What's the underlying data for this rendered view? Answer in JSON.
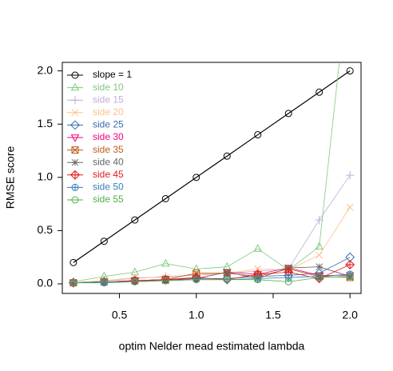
{
  "chart_data": {
    "type": "line",
    "xlabel": "optim Nelder mead estimated lambda",
    "ylabel": "RMSE score",
    "x": [
      0.2,
      0.4,
      0.6,
      0.8,
      1.0,
      1.2,
      1.4,
      1.6,
      1.8,
      2.0
    ],
    "xlim": [
      0.128,
      2.072
    ],
    "ylim": [
      -0.09,
      2.08
    ],
    "xticks": [
      0.5,
      {
        "value": 1.0,
        "label": "1.0"
      },
      1.5,
      {
        "value": 2.0,
        "label": "2.0"
      }
    ],
    "yticks": [
      {
        "value": 0,
        "label": "0.0"
      },
      0.5,
      {
        "value": 1.0,
        "label": "1.0"
      },
      1.5,
      {
        "value": 2.0,
        "label": "2.0"
      }
    ],
    "legend": "top-left",
    "series": [
      {
        "name": "slope = 1",
        "color": "#000000",
        "marker": "circle",
        "values": [
          0.2,
          0.4,
          0.6,
          0.8,
          1.0,
          1.2,
          1.4,
          1.6,
          1.8,
          2.0
        ]
      },
      {
        "name": "side 10",
        "color": "#7fc97f",
        "marker": "triangle",
        "values": [
          0.02,
          0.07,
          0.11,
          0.19,
          0.14,
          0.16,
          0.33,
          0.13,
          0.35,
          3.0
        ]
      },
      {
        "name": "side 15",
        "color": "#beaed4",
        "marker": "plus",
        "values": [
          0.01,
          0.03,
          0.05,
          0.07,
          0.08,
          0.1,
          0.12,
          0.14,
          0.6,
          1.02
        ]
      },
      {
        "name": "side 20",
        "color": "#fdc086",
        "marker": "x",
        "values": [
          0.01,
          0.03,
          0.06,
          0.06,
          0.09,
          0.1,
          0.14,
          0.13,
          0.27,
          0.72
        ]
      },
      {
        "name": "side 25",
        "color": "#386cb0",
        "marker": "diamond",
        "values": [
          0.01,
          0.02,
          0.03,
          0.04,
          0.05,
          0.05,
          0.07,
          0.08,
          0.1,
          0.25
        ]
      },
      {
        "name": "side 30",
        "color": "#f0027f",
        "marker": "triangle-down",
        "values": [
          0.01,
          0.02,
          0.03,
          0.04,
          0.05,
          0.11,
          0.09,
          0.15,
          0.08,
          0.08
        ]
      },
      {
        "name": "side 35",
        "color": "#bf5b17",
        "marker": "square-cross",
        "values": [
          0.01,
          0.02,
          0.03,
          0.04,
          0.1,
          0.1,
          0.07,
          0.14,
          0.07,
          0.06
        ]
      },
      {
        "name": "side 40",
        "color": "#666666",
        "marker": "asterisk",
        "values": [
          0.01,
          0.02,
          0.03,
          0.03,
          0.05,
          0.11,
          0.05,
          0.15,
          0.16,
          0.07
        ]
      },
      {
        "name": "side 45",
        "color": "#e41a1c",
        "marker": "diamond-plus",
        "values": [
          0.01,
          0.02,
          0.03,
          0.04,
          0.06,
          0.04,
          0.09,
          0.11,
          0.05,
          0.18
        ]
      },
      {
        "name": "side 50",
        "color": "#377eb8",
        "marker": "circle-plus",
        "values": [
          0.01,
          0.01,
          0.02,
          0.03,
          0.04,
          0.04,
          0.05,
          0.06,
          0.07,
          0.09
        ]
      },
      {
        "name": "side 55",
        "color": "#4daf4a",
        "marker": "circle",
        "values": [
          0.01,
          0.02,
          0.02,
          0.03,
          0.04,
          0.04,
          0.04,
          0.02,
          0.06,
          0.07
        ]
      }
    ]
  }
}
